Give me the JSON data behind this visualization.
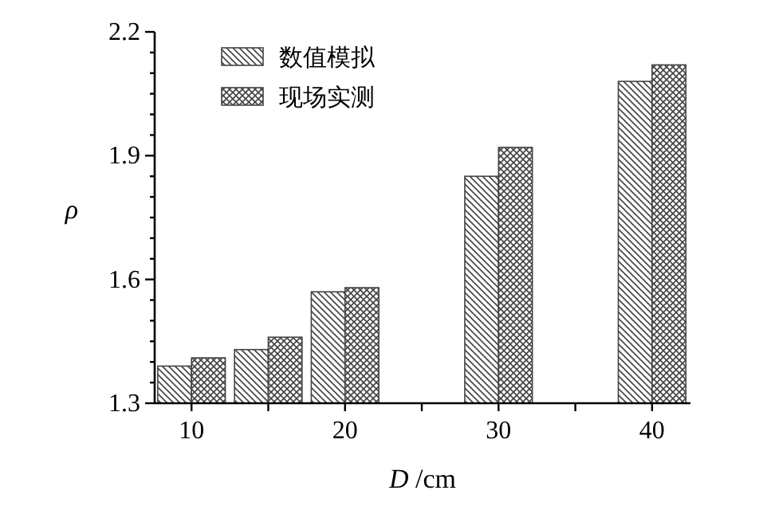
{
  "chart_data": {
    "type": "bar",
    "xlabel": "*D* /cm",
    "ylabel": "ρ",
    "x": [
      10,
      15,
      20,
      30,
      40
    ],
    "series": [
      {
        "name": "数值模拟",
        "color": "#444444",
        "values": [
          1.39,
          1.43,
          1.57,
          1.85,
          2.08
        ]
      },
      {
        "name": "现场实测",
        "color": "#444444",
        "values": [
          1.41,
          1.46,
          1.58,
          1.92,
          2.12
        ]
      }
    ],
    "xlim": [
      7.6,
      42.5
    ],
    "xticks": [
      10,
      {
        "value": 15,
        "label": null
      },
      20,
      {
        "value": 25,
        "label": null
      },
      30,
      {
        "value": 35,
        "label": null
      },
      40
    ],
    "ylim": [
      1.3,
      2.2
    ],
    "yticks": [
      1.3,
      {
        "value": 1.35,
        "label": null
      },
      {
        "value": 1.4,
        "label": null
      },
      {
        "value": 1.45,
        "label": null
      },
      {
        "value": 1.5,
        "label": null
      },
      {
        "value": 1.55,
        "label": null
      },
      1.6,
      {
        "value": 1.65,
        "label": null
      },
      {
        "value": 1.7,
        "label": null
      },
      {
        "value": 1.75,
        "label": null
      },
      {
        "value": 1.8,
        "label": null
      },
      {
        "value": 1.85,
        "label": null
      },
      1.9,
      {
        "value": 1.95,
        "label": null
      },
      {
        "value": 2.0,
        "label": null
      },
      {
        "value": 2.05,
        "label": null
      },
      {
        "value": 2.1,
        "label": null
      },
      {
        "value": 2.15,
        "label": null
      },
      2.2
    ],
    "legend": "top left"
  }
}
